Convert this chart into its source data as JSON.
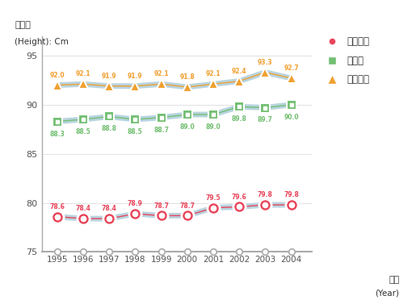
{
  "years": [
    1995,
    1996,
    1997,
    1998,
    1999,
    2000,
    2001,
    2002,
    2003,
    2004
  ],
  "elementary": [
    78.6,
    78.4,
    78.4,
    78.9,
    78.7,
    78.7,
    79.5,
    79.6,
    79.8,
    79.8
  ],
  "middle": [
    88.3,
    88.5,
    88.8,
    88.5,
    88.7,
    89.0,
    89.0,
    89.8,
    89.7,
    90.0
  ],
  "high": [
    92.0,
    92.1,
    91.9,
    91.9,
    92.1,
    91.8,
    92.1,
    92.4,
    93.3,
    92.7
  ],
  "elementary_color": "#e8445a",
  "middle_color": "#72bf72",
  "high_color": "#f0a030",
  "line_color": "#b8d4e0",
  "ylabel_line1": "않은키",
  "ylabel_line2": "(Height): Cm",
  "xlabel_line1": "연도",
  "xlabel_line2": "(Year)",
  "ylim": [
    75,
    97
  ],
  "yticks": [
    75,
    80,
    85,
    90,
    95
  ],
  "legend_labels": [
    "초등학교",
    "중학교",
    "고등학교"
  ],
  "bg_color": "#ffffff",
  "spine_color": "#aaaaaa",
  "tick_color": "#555555",
  "label_color": "#555555"
}
